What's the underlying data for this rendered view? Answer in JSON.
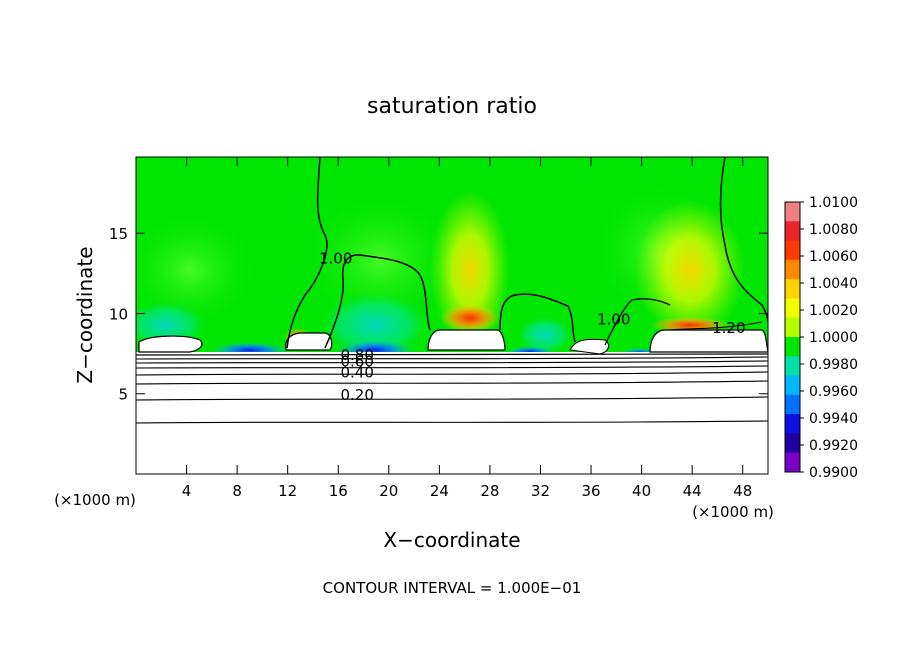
{
  "chart_data": {
    "type": "heatmap",
    "title": "saturation ratio",
    "xlabel": "X−coordinate",
    "ylabel": "Z−coordinate",
    "x_unit_left": "(×1000 m)",
    "x_unit_right": "(×1000 m)",
    "xlim": [
      0,
      50
    ],
    "ylim": [
      0,
      19.75
    ],
    "x_ticks": [
      4,
      8,
      12,
      16,
      20,
      24,
      28,
      32,
      36,
      40,
      44,
      48
    ],
    "y_ticks": [
      5,
      10,
      15
    ],
    "footer": "CONTOUR INTERVAL = 1.000E−01",
    "colorbar": {
      "levels": [
        "1.0100",
        "1.0080",
        "1.0060",
        "1.0040",
        "1.0020",
        "1.0000",
        "0.9980",
        "0.9960",
        "0.9940",
        "0.9920",
        "0.9900"
      ],
      "colors": [
        "#f08080",
        "#e8262a",
        "#ff3a00",
        "#ff8a00",
        "#ffd200",
        "#f2ff00",
        "#b6ff00",
        "#00e600",
        "#00e0a8",
        "#00b8ff",
        "#0070ff",
        "#1010e0",
        "#2000a0",
        "#7a00c8"
      ]
    },
    "contour_labels": [
      {
        "text": "1.00",
        "x": 15.8,
        "y": 13.1
      },
      {
        "text": "1.00",
        "x": 37.8,
        "y": 9.3
      },
      {
        "text": "1.20",
        "x": 46.9,
        "y": 8.8
      },
      {
        "text": "0.80",
        "x": 17.5,
        "y": 7.1
      },
      {
        "text": "0.60",
        "x": 17.5,
        "y": 6.7
      },
      {
        "text": "0.40",
        "x": 17.5,
        "y": 6.0
      },
      {
        "text": "0.20",
        "x": 17.5,
        "y": 4.6
      }
    ],
    "grid": false,
    "legend": "right"
  }
}
